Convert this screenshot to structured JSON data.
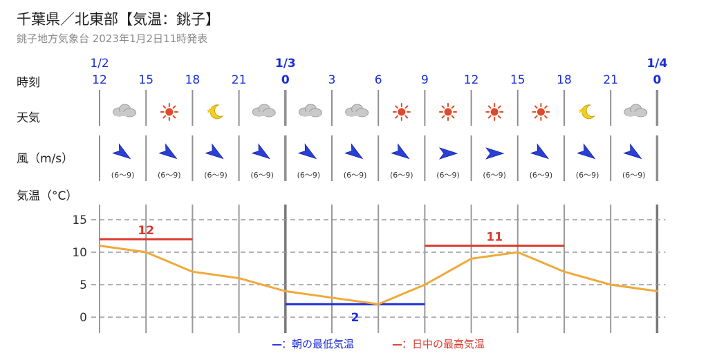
{
  "header": {
    "title": "千葉県／北東部【気温：銚子】",
    "subtitle": "銚子地方気象台 2023年1月2日11時発表"
  },
  "row_labels": {
    "time": "時刻",
    "weather": "天気",
    "wind": "風（m/s）",
    "temp": "気温（°C）"
  },
  "legend": {
    "min_mark": "—",
    "min_text": "：朝の最低気温",
    "max_mark": "—",
    "max_text": "：日中の最高気温"
  },
  "colors": {
    "line": "#f0a93a",
    "min": "#1a2ed6",
    "max": "#d9392b",
    "time_text": "#1a2ed6",
    "grid": "#999999",
    "arrow": "#2a3fd4"
  },
  "chart_data": {
    "type": "line",
    "dates": [
      {
        "label": "1/2",
        "at_index": 0,
        "bold": false
      },
      {
        "label": "1/3",
        "at_index": 4,
        "bold": true
      },
      {
        "label": "1/4",
        "at_index": 12,
        "bold": true
      }
    ],
    "hours": [
      "12",
      "15",
      "18",
      "21",
      "0",
      "3",
      "6",
      "9",
      "12",
      "15",
      "18",
      "21",
      "0"
    ],
    "bold_hour_indices": [
      4,
      12
    ],
    "weather_icons": [
      "cloud-icon",
      "sun-icon",
      "moon-icon",
      "cloud-icon",
      "cloud-icon",
      "cloud-icon",
      "sun-icon",
      "sun-icon",
      "sun-icon",
      "sun-icon",
      "moon-icon",
      "cloud-icon"
    ],
    "wind": [
      {
        "speed": "(6〜9)",
        "direction": "NW"
      },
      {
        "speed": "(6〜9)",
        "direction": "NW"
      },
      {
        "speed": "(6〜9)",
        "direction": "NW"
      },
      {
        "speed": "(6〜9)",
        "direction": "NW"
      },
      {
        "speed": "(6〜9)",
        "direction": "NW"
      },
      {
        "speed": "(6〜9)",
        "direction": "NW"
      },
      {
        "speed": "(6〜9)",
        "direction": "NW"
      },
      {
        "speed": "(6〜9)",
        "direction": "W"
      },
      {
        "speed": "(6〜9)",
        "direction": "W"
      },
      {
        "speed": "(6〜9)",
        "direction": "NW"
      },
      {
        "speed": "(6〜9)",
        "direction": "NW"
      },
      {
        "speed": "(6〜9)",
        "direction": "NW"
      }
    ],
    "temperatures": [
      11,
      10,
      7,
      6,
      4,
      3,
      2,
      5,
      9,
      10,
      7,
      5,
      4
    ],
    "y_ticks": [
      0,
      5,
      10,
      15
    ],
    "ylim": [
      -2,
      17.5
    ],
    "grid": true,
    "max_min_bars": [
      {
        "kind": "max",
        "value": 12,
        "label": "12",
        "from_index": 0,
        "to_index": 2
      },
      {
        "kind": "min",
        "value": 2,
        "label": "2",
        "from_index": 4,
        "to_index": 7
      },
      {
        "kind": "max",
        "value": 11,
        "label": "11",
        "from_index": 7,
        "to_index": 10
      }
    ]
  }
}
